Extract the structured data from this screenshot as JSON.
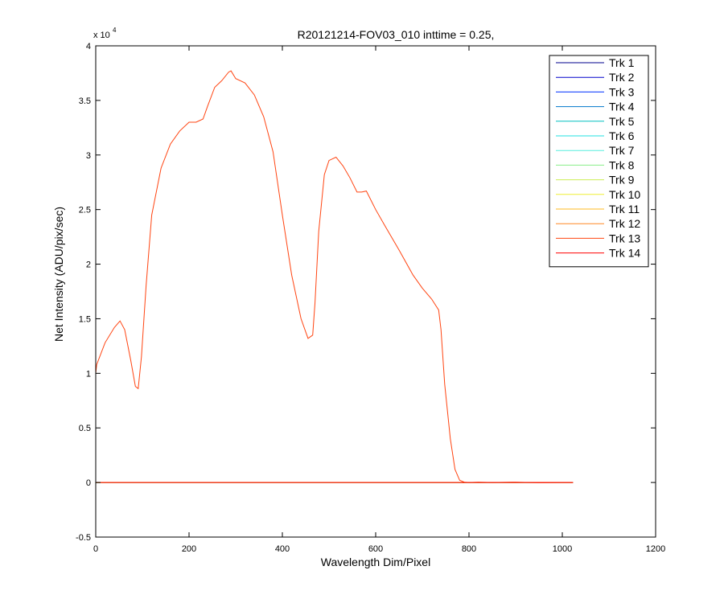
{
  "chart_data": {
    "type": "line",
    "title": "R20121214-FOV03_010 inttime = 0.25,",
    "xlabel": "Wavelength Dim/Pixel",
    "ylabel": "Net Intensity (ADU/pix/sec)",
    "xlim": [
      0,
      1200
    ],
    "ylim": [
      -5000,
      40000
    ],
    "xticks": [
      "0",
      "200",
      "400",
      "600",
      "800",
      "1000",
      "1200"
    ],
    "yticks": [
      "-0.5",
      "0",
      "0.5",
      "1",
      "1.5",
      "2",
      "2.5",
      "3",
      "3.5",
      "4"
    ],
    "ytick_values": [
      -5000,
      0,
      5000,
      10000,
      15000,
      20000,
      25000,
      30000,
      35000,
      40000
    ],
    "xtick_values": [
      0,
      200,
      400,
      600,
      800,
      1000,
      1200
    ],
    "y_exponent_label": "x 10",
    "y_exponent": "4",
    "legend_position": "top-right",
    "grid": false,
    "series": [
      {
        "name": "Trk 1",
        "color": "#00008f",
        "x": [
          0,
          1023
        ],
        "y": [
          0,
          0
        ]
      },
      {
        "name": "Trk 2",
        "color": "#0000cc",
        "x": [
          0,
          1023
        ],
        "y": [
          0,
          0
        ]
      },
      {
        "name": "Trk 3",
        "color": "#0033ff",
        "x": [
          0,
          1023
        ],
        "y": [
          0,
          0
        ]
      },
      {
        "name": "Trk 4",
        "color": "#0077cc",
        "x": [
          0,
          1023
        ],
        "y": [
          0,
          0
        ]
      },
      {
        "name": "Trk 5",
        "color": "#00bfbf",
        "x": [
          0,
          1023
        ],
        "y": [
          0,
          0
        ]
      },
      {
        "name": "Trk 6",
        "color": "#22e0e0",
        "x": [
          0,
          1023
        ],
        "y": [
          0,
          0
        ]
      },
      {
        "name": "Trk 7",
        "color": "#55eedd",
        "x": [
          0,
          1023
        ],
        "y": [
          0,
          0
        ]
      },
      {
        "name": "Trk 8",
        "color": "#88ee88",
        "x": [
          0,
          1023
        ],
        "y": [
          0,
          0
        ]
      },
      {
        "name": "Trk 9",
        "color": "#ccee55",
        "x": [
          0,
          1023
        ],
        "y": [
          0,
          0
        ]
      },
      {
        "name": "Trk 10",
        "color": "#eeee33",
        "x": [
          0,
          1023
        ],
        "y": [
          0,
          0
        ]
      },
      {
        "name": "Trk 11",
        "color": "#ffbb22",
        "x": [
          0,
          1023
        ],
        "y": [
          0,
          0
        ]
      },
      {
        "name": "Trk 12",
        "color": "#ff8822",
        "x": [
          0,
          1023
        ],
        "y": [
          0,
          0
        ]
      },
      {
        "name": "Trk 13",
        "color": "#ff4411",
        "x": [
          0,
          2,
          20,
          40,
          52,
          62,
          75,
          85,
          91,
          98,
          108,
          120,
          140,
          160,
          180,
          200,
          215,
          230,
          240,
          255,
          270,
          285,
          290,
          300,
          320,
          340,
          360,
          380,
          400,
          420,
          440,
          455,
          465,
          470,
          478,
          490,
          500,
          515,
          530,
          545,
          560,
          570,
          580,
          600,
          620,
          650,
          680,
          700,
          720,
          735,
          740,
          748,
          760,
          770,
          780,
          790,
          800,
          820,
          850,
          900,
          950,
          1000,
          1023
        ],
        "y": [
          10000,
          10800,
          12800,
          14200,
          14800,
          14000,
          11200,
          8800,
          8600,
          11500,
          18000,
          24500,
          28800,
          31000,
          32200,
          33000,
          33000,
          33300,
          34500,
          36200,
          36800,
          37600,
          37700,
          37000,
          36600,
          35500,
          33500,
          30300,
          24500,
          19000,
          15000,
          13200,
          13500,
          16500,
          23000,
          28200,
          29500,
          29800,
          29000,
          27900,
          26600,
          26600,
          26700,
          25000,
          23500,
          21300,
          19000,
          17800,
          16800,
          15800,
          14000,
          9000,
          4000,
          1200,
          200,
          30,
          0,
          20,
          0,
          30,
          -20,
          0,
          0
        ]
      },
      {
        "name": "Trk 14",
        "color": "#ff0000",
        "x": [
          0,
          1023
        ],
        "y": [
          0,
          0
        ]
      }
    ]
  }
}
